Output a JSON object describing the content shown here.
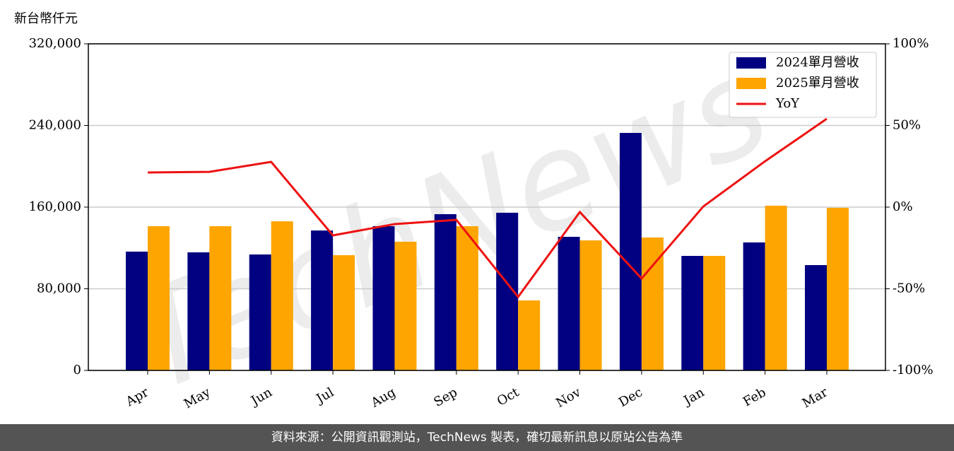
{
  "chart_data": {
    "type": "bar_line",
    "ylabel": "新台幣仟元",
    "watermark": "TechNews",
    "categories": [
      "Apr",
      "May",
      "Jun",
      "Jul",
      "Aug",
      "Sep",
      "Oct",
      "Nov",
      "Dec",
      "Jan",
      "Feb",
      "Mar"
    ],
    "series": [
      {
        "name": "2024單月營收",
        "color": "#000080",
        "type": "bar",
        "values": [
          116400,
          115700,
          113600,
          137100,
          141300,
          153100,
          154500,
          130900,
          232700,
          112200,
          125400,
          103200
        ]
      },
      {
        "name": "2025單月營收",
        "color": "#ffa500",
        "type": "bar",
        "values": [
          141300,
          141300,
          146100,
          112900,
          126100,
          141300,
          68600,
          127400,
          130200,
          112200,
          161400,
          159300
        ]
      },
      {
        "name": "YoY",
        "color": "#ee1111",
        "type": "line",
        "axis": "y2",
        "values": [
          21.2,
          21.6,
          27.7,
          -17.3,
          -10.4,
          -7.8,
          -55,
          -3,
          -43.7,
          0.4,
          28.1,
          54.1
        ]
      }
    ],
    "ylim": [
      0,
      320000
    ],
    "yticks": [
      0,
      {
        "value": 80000,
        "label": "80,000"
      },
      {
        "value": 160000,
        "label": "160,000"
      },
      {
        "value": 240000,
        "label": "240,000"
      },
      {
        "value": 320000,
        "label": "320,000"
      }
    ],
    "y2lim": [
      -100,
      100
    ],
    "y2ticks": [
      {
        "value": -100,
        "label": "-100%"
      },
      {
        "value": -50,
        "label": "-50%"
      },
      {
        "value": 0,
        "label": "0%"
      },
      {
        "value": 50,
        "label": "50%"
      },
      {
        "value": 100,
        "label": "100%"
      }
    ],
    "grid": true,
    "legend": "upper right"
  },
  "footer": "資料來源：公開資訊觀測站，TechNews 製表，確切最新訊息以原站公告為準"
}
